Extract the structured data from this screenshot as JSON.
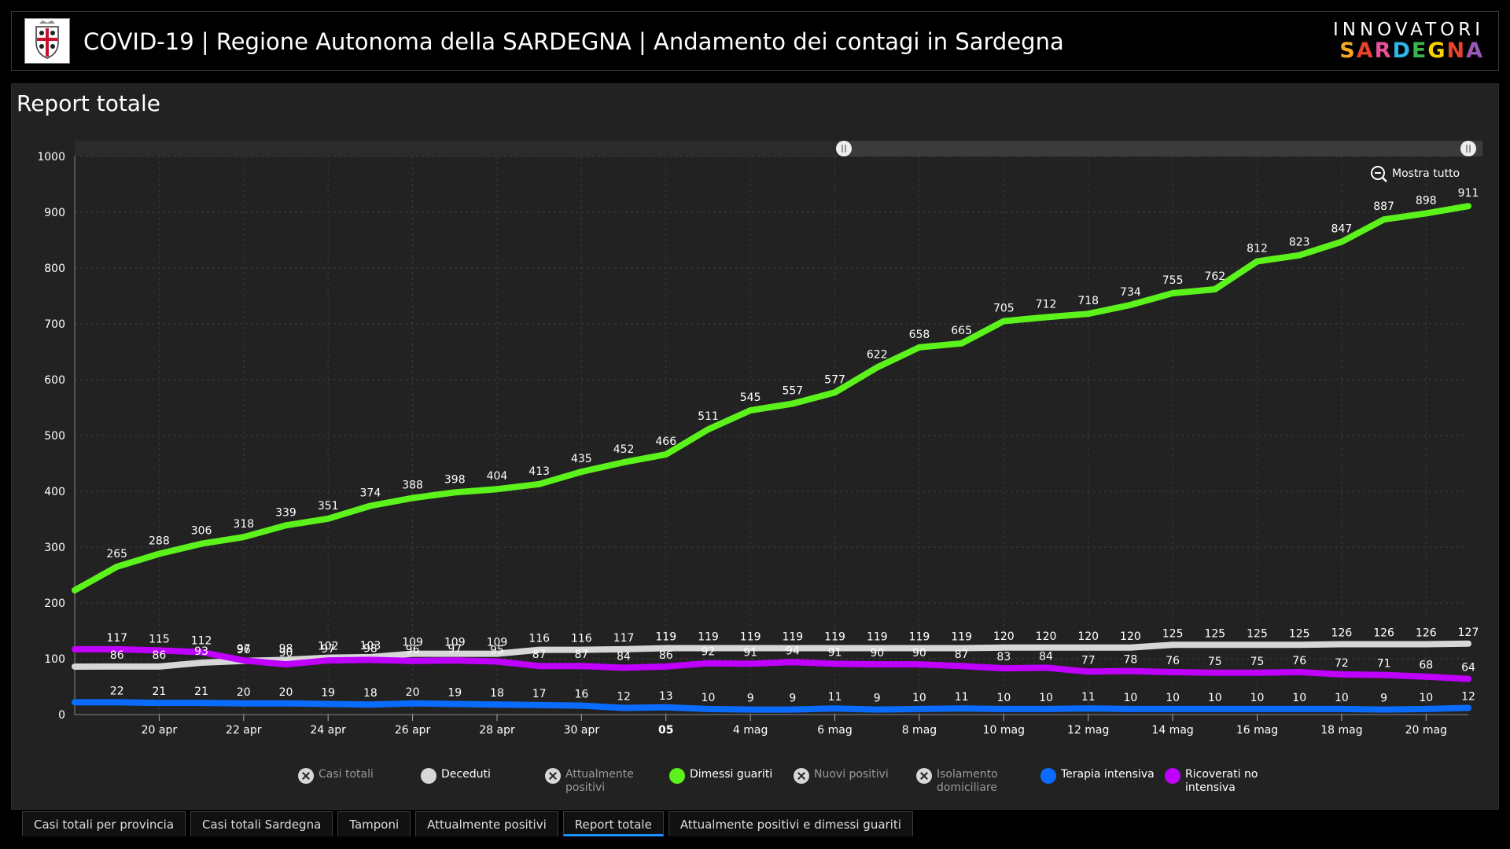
{
  "header": {
    "title": "COVID-19 | Regione Autonoma della SARDEGNA | Andamento dei contagi in Sardegna",
    "brand_line1": "INNOVATORI",
    "brand_line2": "SARDEGNA"
  },
  "panel": {
    "title": "Report totale",
    "zoom_label": "Mostra tutto"
  },
  "chart_data": {
    "type": "line",
    "ylim": [
      0,
      1000
    ],
    "yticks": [
      0,
      100,
      200,
      300,
      400,
      500,
      600,
      700,
      800,
      900,
      1000
    ],
    "x_start": "2020-04-18",
    "x_end": "2020-05-21",
    "xticks": [
      {
        "date": "2020-04-20",
        "label": "20 apr"
      },
      {
        "date": "2020-04-22",
        "label": "22 apr"
      },
      {
        "date": "2020-04-24",
        "label": "24 apr"
      },
      {
        "date": "2020-04-26",
        "label": "26 apr"
      },
      {
        "date": "2020-04-28",
        "label": "28 apr"
      },
      {
        "date": "2020-04-30",
        "label": "30 apr"
      },
      {
        "date": "2020-05-02",
        "label": "05",
        "bold": true
      },
      {
        "date": "2020-05-04",
        "label": "4 mag"
      },
      {
        "date": "2020-05-06",
        "label": "6 mag"
      },
      {
        "date": "2020-05-08",
        "label": "8 mag"
      },
      {
        "date": "2020-05-10",
        "label": "10 mag"
      },
      {
        "date": "2020-05-12",
        "label": "12 mag"
      },
      {
        "date": "2020-05-14",
        "label": "14 mag"
      },
      {
        "date": "2020-05-16",
        "label": "16 mag"
      },
      {
        "date": "2020-05-18",
        "label": "18 mag"
      },
      {
        "date": "2020-05-20",
        "label": "20 mag"
      }
    ],
    "x": [
      "2020-04-19",
      "2020-04-20",
      "2020-04-21",
      "2020-04-22",
      "2020-04-23",
      "2020-04-24",
      "2020-04-25",
      "2020-04-26",
      "2020-04-27",
      "2020-04-28",
      "2020-04-29",
      "2020-04-30",
      "2020-05-01",
      "2020-05-02",
      "2020-05-03",
      "2020-05-04",
      "2020-05-05",
      "2020-05-06",
      "2020-05-07",
      "2020-05-08",
      "2020-05-09",
      "2020-05-10",
      "2020-05-11",
      "2020-05-12",
      "2020-05-13",
      "2020-05-14",
      "2020-05-15",
      "2020-05-16",
      "2020-05-17",
      "2020-05-18",
      "2020-05-19",
      "2020-05-20",
      "2020-05-21"
    ],
    "series": [
      {
        "name": "Dimessi guariti",
        "color": "#5cf21b",
        "label_pos": "above",
        "values": [
          265,
          288,
          306,
          318,
          339,
          351,
          374,
          388,
          398,
          404,
          413,
          435,
          452,
          466,
          511,
          545,
          557,
          577,
          622,
          658,
          665,
          705,
          712,
          718,
          734,
          755,
          762,
          812,
          823,
          847,
          887,
          898,
          911
        ]
      },
      {
        "name": "Deceduti",
        "color": "#d7d7d7",
        "label_pos": "above",
        "values": [
          86,
          86,
          93,
          96,
          98,
          102,
          103,
          109,
          109,
          109,
          116,
          116,
          117,
          119,
          119,
          119,
          119,
          119,
          119,
          119,
          119,
          120,
          120,
          120,
          120,
          125,
          125,
          125,
          125,
          126,
          126,
          126,
          127
        ]
      },
      {
        "name": "Ricoverati no intensiva",
        "color": "#c000ff",
        "label_pos": "above",
        "values": [
          117,
          115,
          112,
          97,
          90,
          97,
          98,
          96,
          97,
          95,
          87,
          87,
          84,
          86,
          92,
          91,
          94,
          91,
          90,
          90,
          87,
          83,
          84,
          77,
          78,
          76,
          75,
          75,
          76,
          72,
          71,
          68,
          64
        ]
      },
      {
        "name": "Terapia intensiva",
        "color": "#0a6cff",
        "label_pos": "above",
        "values": [
          22,
          21,
          21,
          20,
          20,
          19,
          18,
          20,
          19,
          18,
          17,
          16,
          12,
          13,
          10,
          9,
          9,
          11,
          9,
          10,
          11,
          10,
          10,
          11,
          10,
          10,
          10,
          10,
          10,
          10,
          9,
          10,
          12
        ]
      }
    ]
  },
  "legend": [
    {
      "label": "Casi totali",
      "color": "#d7d7d7",
      "enabled": false
    },
    {
      "label": "Deceduti",
      "color": "#d7d7d7",
      "enabled": true
    },
    {
      "label": "Attualmente positivi",
      "color": "#d7d7d7",
      "enabled": false
    },
    {
      "label": "Dimessi guariti",
      "color": "#5cf21b",
      "enabled": true
    },
    {
      "label": "Nuovi positivi",
      "color": "#d7d7d7",
      "enabled": false
    },
    {
      "label": "Isolamento domiciliare",
      "color": "#d7d7d7",
      "enabled": false
    },
    {
      "label": "Terapia intensiva",
      "color": "#0a6cff",
      "enabled": true
    },
    {
      "label": "Ricoverati no intensiva",
      "color": "#c000ff",
      "enabled": true
    }
  ],
  "tabs": [
    {
      "label": "Casi totali per provincia",
      "active": false
    },
    {
      "label": "Casi totali Sardegna",
      "active": false
    },
    {
      "label": "Tamponi",
      "active": false
    },
    {
      "label": "Attualmente positivi",
      "active": false
    },
    {
      "label": "Report totale",
      "active": true
    },
    {
      "label": "Attualmente positivi e dimessi guariti",
      "active": false
    }
  ]
}
